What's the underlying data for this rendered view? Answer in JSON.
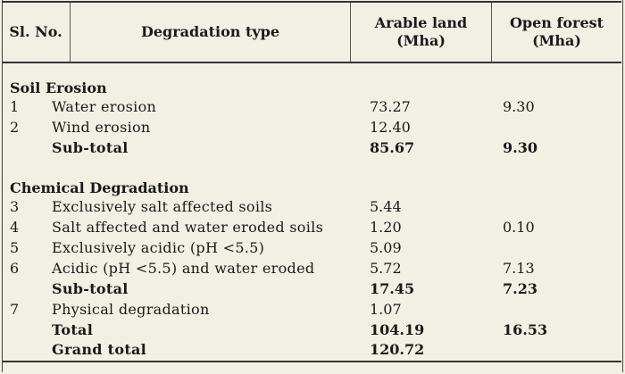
{
  "header": {
    "sl_no": "Sl. No.",
    "type": "Degradation type",
    "arable_line1": "Arable land",
    "arable_line2": "(Mha)",
    "forest_line1": "Open forest",
    "forest_line2": "(Mha)"
  },
  "sections": {
    "soil_erosion": {
      "title": "Soil Erosion",
      "rows": [
        {
          "no": "1",
          "type": "Water erosion",
          "arable": "73.27",
          "forest": "9.30"
        },
        {
          "no": "2",
          "type": "Wind erosion",
          "arable": "12.40",
          "forest": ""
        }
      ],
      "subtotal": {
        "label": "Sub-total",
        "arable": "85.67",
        "forest": "9.30"
      }
    },
    "chemical": {
      "title": "Chemical Degradation",
      "rows": [
        {
          "no": "3",
          "type": "Exclusively salt affected soils",
          "arable": "5.44",
          "forest": ""
        },
        {
          "no": "4",
          "type": "Salt affected and water eroded soils",
          "arable": "1.20",
          "forest": "0.10"
        },
        {
          "no": "5",
          "type": "Exclusively acidic (pH <5.5)",
          "arable": "5.09",
          "forest": ""
        },
        {
          "no": "6",
          "type": "Acidic (pH <5.5) and water eroded",
          "arable": "5.72",
          "forest": "7.13"
        }
      ],
      "subtotal": {
        "label": "Sub-total",
        "arable": "17.45",
        "forest": "7.23"
      }
    },
    "physical": {
      "no": "7",
      "type": "Physical degradation",
      "arable": "1.07",
      "forest": ""
    }
  },
  "totals": {
    "total": {
      "label": "Total",
      "arable": "104.19",
      "forest": "16.53"
    },
    "grand": {
      "label": "Grand total",
      "arable": "120.72"
    }
  }
}
